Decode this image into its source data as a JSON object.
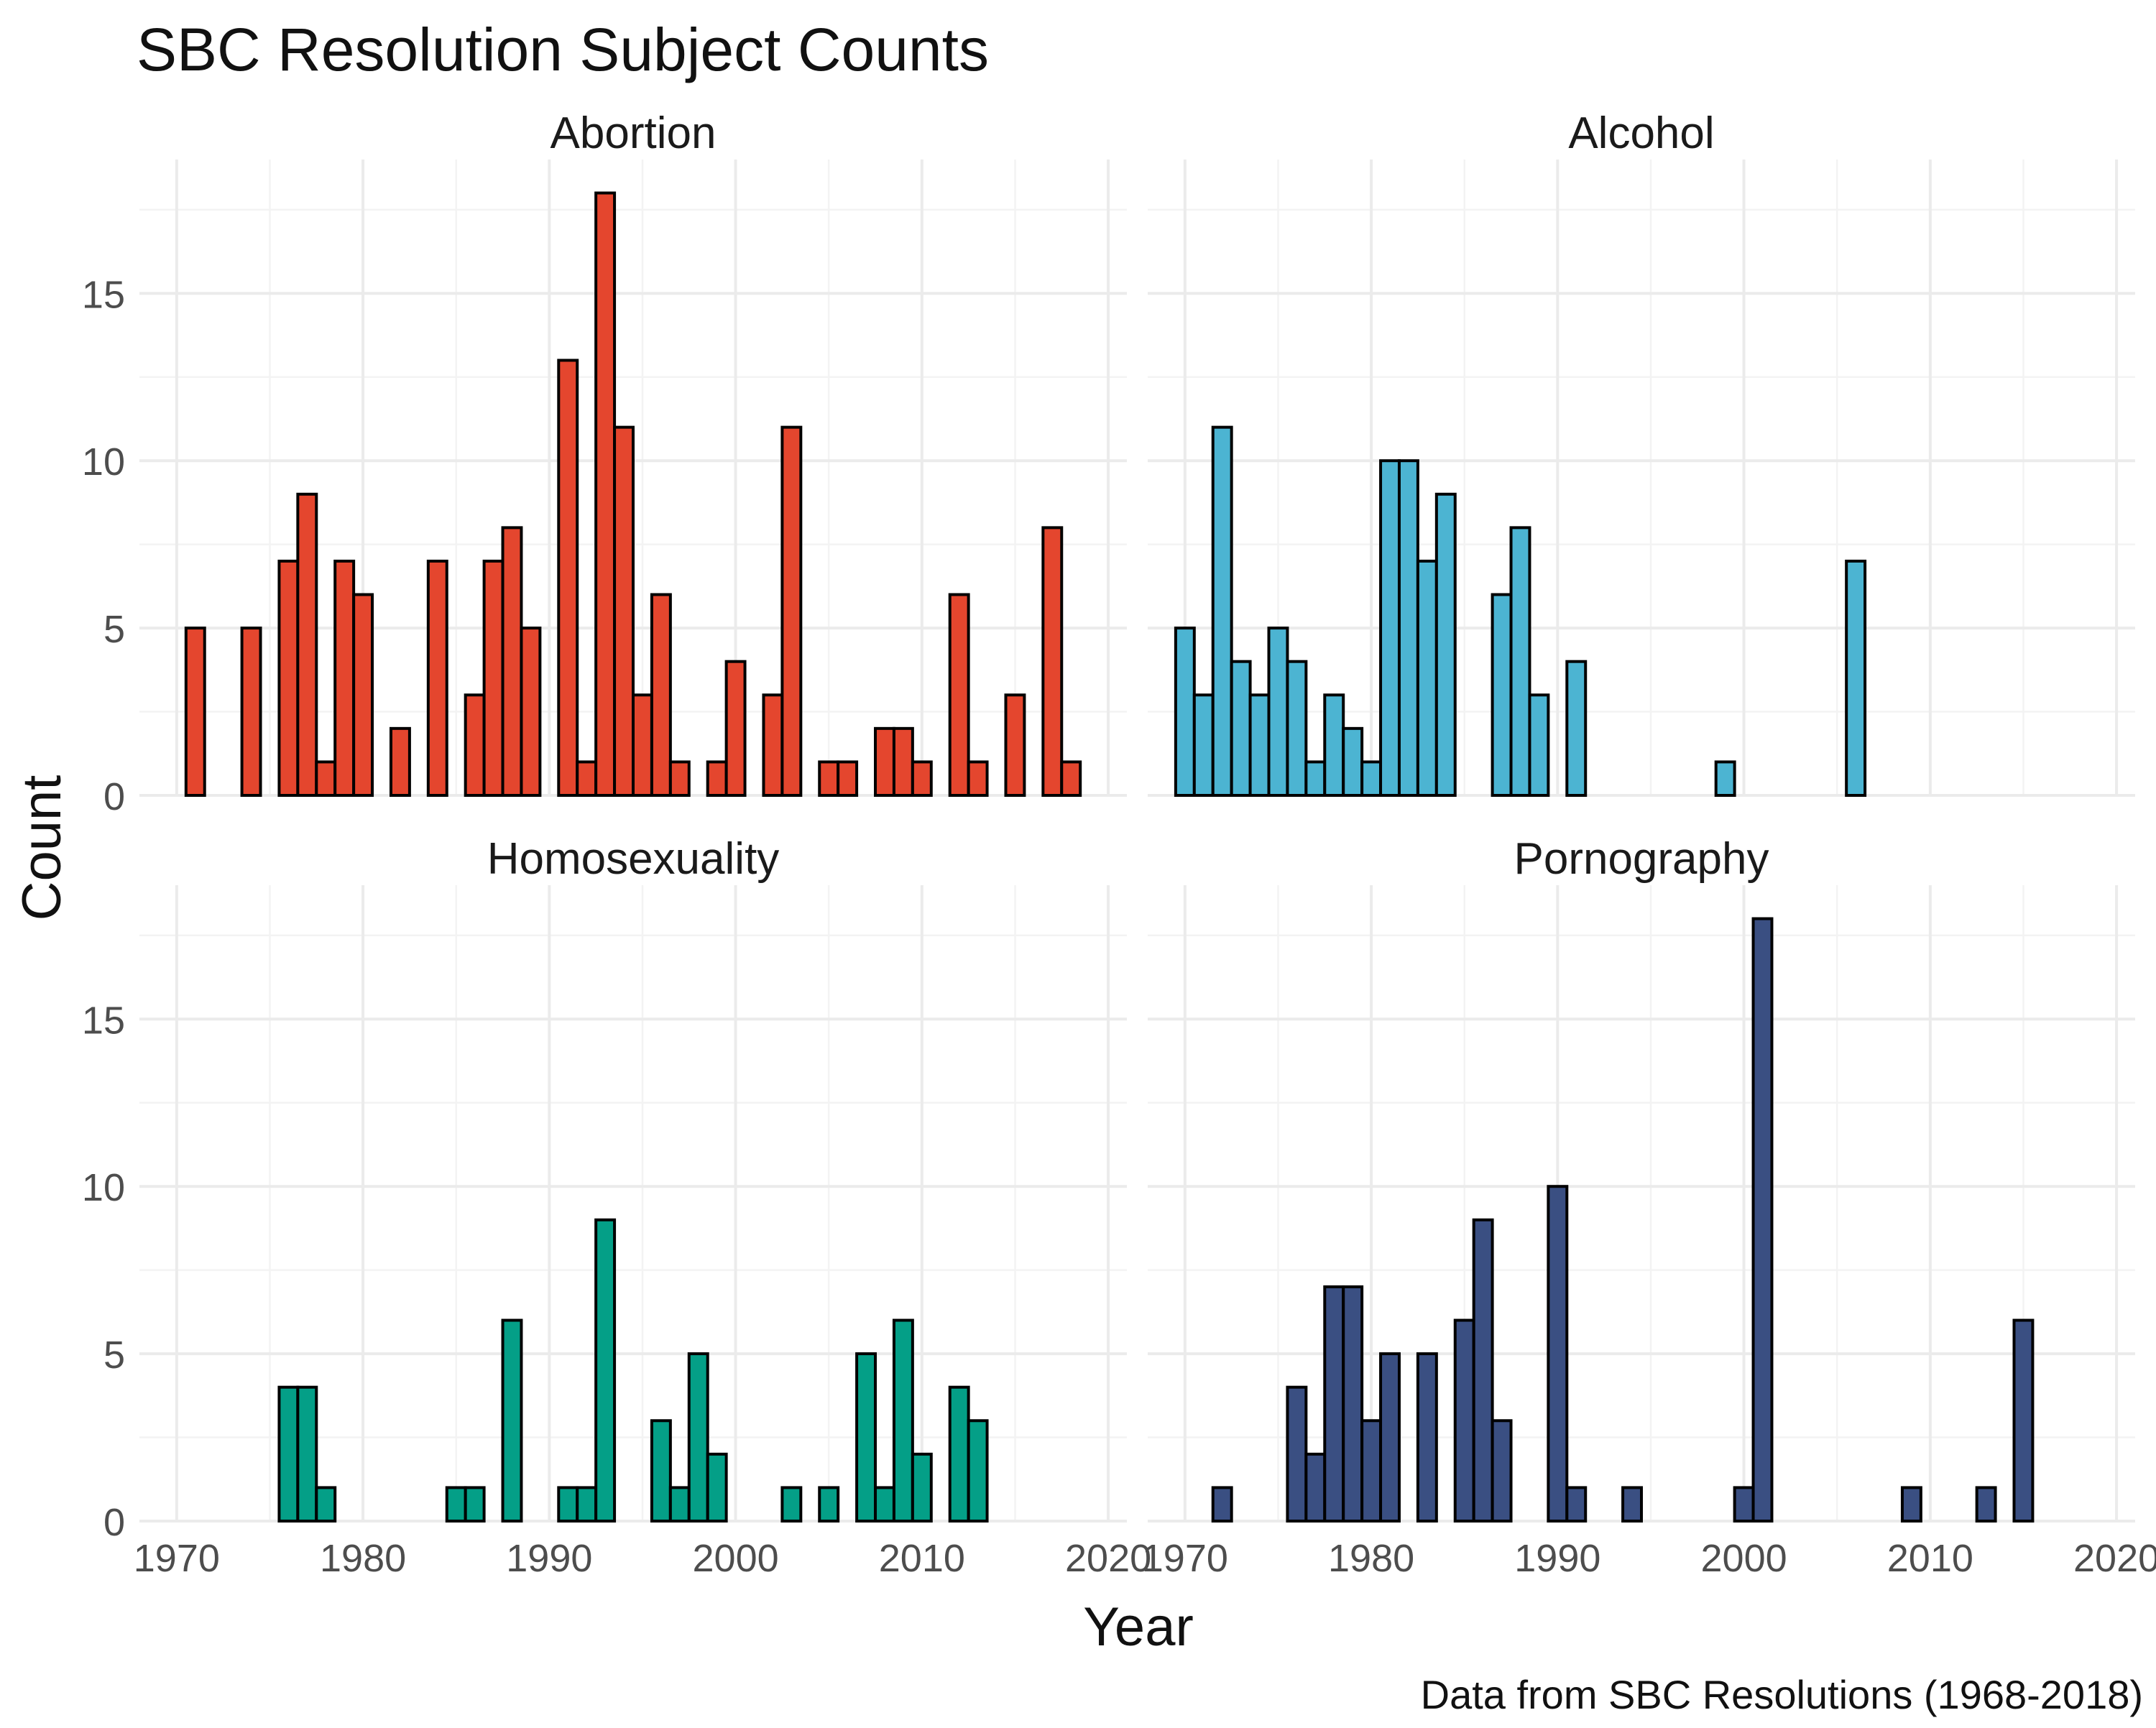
{
  "title": "SBC Resolution Subject Counts",
  "caption": "Data from SBC Resolutions (1968-2018)",
  "chart_data": {
    "type": "bar",
    "title": "SBC Resolution Subject Counts",
    "xlabel": "Year",
    "ylabel": "Count",
    "xlim": [
      1968,
      2021
    ],
    "ylim": [
      0,
      19
    ],
    "x_ticks": [
      1970,
      1980,
      1990,
      2000,
      2010,
      2020
    ],
    "y_ticks": [
      0,
      5,
      10,
      15
    ],
    "grid": true,
    "legend": "none",
    "panels": [
      {
        "name": "Abortion",
        "color": "#E4462E",
        "x": [
          1971,
          1974,
          1976,
          1977,
          1978,
          1979,
          1980,
          1982,
          1984,
          1986,
          1987,
          1988,
          1989,
          1991,
          1992,
          1993,
          1994,
          1995,
          1996,
          1997,
          1999,
          2000,
          2002,
          2003,
          2005,
          2006,
          2008,
          2009,
          2010,
          2012,
          2013,
          2015,
          2017,
          2018
        ],
        "values": [
          5,
          5,
          7,
          9,
          1,
          7,
          6,
          2,
          7,
          3,
          7,
          8,
          5,
          13,
          1,
          18,
          11,
          3,
          6,
          1,
          1,
          4,
          3,
          11,
          1,
          1,
          2,
          2,
          1,
          6,
          1,
          3,
          8,
          1
        ]
      },
      {
        "name": "Alcohol",
        "color": "#4CB4D2",
        "x": [
          1970,
          1971,
          1972,
          1973,
          1974,
          1975,
          1976,
          1977,
          1978,
          1979,
          1980,
          1981,
          1982,
          1983,
          1984,
          1987,
          1988,
          1989,
          1991,
          1999,
          2006
        ],
        "values": [
          5,
          3,
          11,
          4,
          3,
          5,
          4,
          1,
          3,
          2,
          1,
          10,
          10,
          7,
          9,
          6,
          8,
          3,
          4,
          1,
          7
        ]
      },
      {
        "name": "Homosexuality",
        "color": "#049F87",
        "x": [
          1976,
          1977,
          1978,
          1985,
          1986,
          1988,
          1991,
          1992,
          1993,
          1996,
          1997,
          1998,
          1999,
          2003,
          2005,
          2007,
          2008,
          2009,
          2010,
          2012,
          2013
        ],
        "values": [
          4,
          4,
          1,
          1,
          1,
          6,
          1,
          1,
          9,
          3,
          1,
          5,
          2,
          1,
          1,
          5,
          1,
          6,
          2,
          4,
          3
        ]
      },
      {
        "name": "Pornography",
        "color": "#3A4F82",
        "x": [
          1972,
          1976,
          1977,
          1978,
          1979,
          1980,
          1981,
          1983,
          1985,
          1986,
          1987,
          1990,
          1991,
          1994,
          2000,
          2001,
          2009,
          2013,
          2015
        ],
        "values": [
          1,
          4,
          2,
          7,
          7,
          3,
          5,
          5,
          6,
          9,
          3,
          10,
          1,
          1,
          1,
          18,
          1,
          1,
          6
        ]
      }
    ]
  }
}
